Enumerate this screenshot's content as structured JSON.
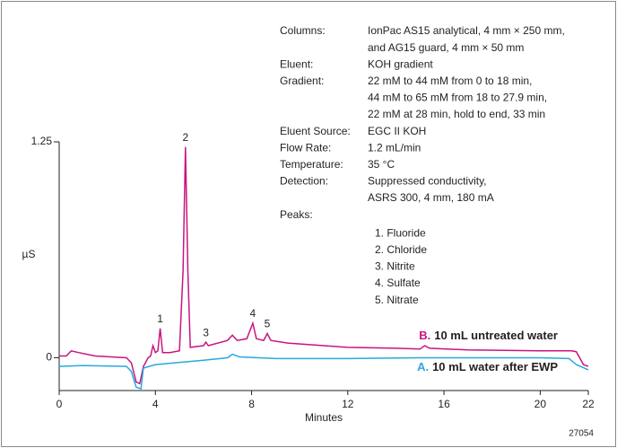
{
  "chart_data": {
    "type": "line",
    "xlabel": "Minutes",
    "ylabel": "µS",
    "xlim": [
      0,
      22
    ],
    "xticks": [
      0,
      4,
      8,
      12,
      16,
      20,
      22
    ],
    "ylim": [
      -0.19,
      1.25
    ],
    "yticks": [
      0,
      1.25
    ],
    "series": [
      {
        "letter": "B.",
        "name": "10 mL untreated water",
        "color": "#c8157f",
        "x": [
          0,
          0.3,
          0.5,
          0.8,
          1.5,
          2.8,
          3.0,
          3.2,
          3.35,
          3.5,
          3.7,
          3.8,
          3.9,
          4.0,
          4.1,
          4.2,
          4.3,
          4.6,
          5.0,
          5.15,
          5.25,
          5.35,
          5.45,
          6.0,
          6.1,
          6.2,
          7.0,
          7.2,
          7.4,
          7.8,
          8.05,
          8.2,
          8.5,
          8.65,
          8.8,
          9.5,
          12,
          14,
          15.0,
          15.2,
          15.4,
          17,
          20,
          21.3,
          21.5,
          21.8,
          22
        ],
        "values": [
          0.01,
          0.01,
          0.04,
          0.03,
          0.01,
          0.0,
          -0.03,
          -0.14,
          -0.15,
          -0.05,
          0.0,
          0.01,
          0.07,
          0.03,
          0.04,
          0.17,
          0.03,
          0.03,
          0.04,
          0.5,
          1.22,
          0.5,
          0.06,
          0.07,
          0.09,
          0.07,
          0.1,
          0.13,
          0.1,
          0.11,
          0.2,
          0.11,
          0.1,
          0.14,
          0.1,
          0.085,
          0.06,
          0.055,
          0.05,
          0.07,
          0.055,
          0.045,
          0.04,
          0.04,
          0.035,
          -0.04,
          -0.05
        ]
      },
      {
        "letter": "A.",
        "name": "10 mL water after EWP",
        "color": "#29a8e0",
        "x": [
          0,
          1,
          2.8,
          3.0,
          3.2,
          3.4,
          3.5,
          4,
          6,
          7.0,
          7.2,
          7.5,
          9,
          12,
          15,
          20,
          21.2,
          21.5,
          22
        ],
        "values": [
          -0.05,
          -0.045,
          -0.05,
          -0.08,
          -0.17,
          -0.18,
          -0.06,
          -0.04,
          -0.015,
          0.0,
          0.02,
          0.005,
          -0.005,
          -0.005,
          0.0,
          0.0,
          -0.005,
          -0.04,
          -0.07
        ]
      }
    ],
    "annotations": [
      {
        "text": "1",
        "x": 4.2,
        "y": 0.17
      },
      {
        "text": "2",
        "x": 5.25,
        "y": 1.22
      },
      {
        "text": "3",
        "x": 6.1,
        "y": 0.09
      },
      {
        "text": "4",
        "x": 8.05,
        "y": 0.2
      },
      {
        "text": "5",
        "x": 8.65,
        "y": 0.14
      }
    ],
    "conditions": [
      {
        "label": "Columns:",
        "lines": [
          "IonPac AS15 analytical, 4 mm × 250 mm,",
          "and AG15 guard, 4 mm × 50 mm"
        ]
      },
      {
        "label": "Eluent:",
        "lines": [
          "KOH gradient"
        ]
      },
      {
        "label": "Gradient:",
        "lines": [
          "22 mM to 44 mM from 0 to 18 min,",
          "44 mM to 65 mM from 18 to 27.9 min,",
          "22 mM at 28 min, hold to end, 33 min"
        ]
      },
      {
        "label": "Eluent Source:",
        "lines": [
          "EGC II KOH"
        ]
      },
      {
        "label": "Flow Rate:",
        "lines": [
          "1.2 mL/min"
        ]
      },
      {
        "label": "Temperature:",
        "lines": [
          "35 °C"
        ]
      },
      {
        "label": "Detection:",
        "lines": [
          "Suppressed conductivity,",
          "ASRS 300, 4 mm, 180 mA"
        ]
      },
      {
        "label": "Peaks:",
        "lines": []
      }
    ],
    "peaks": [
      "1. Fluoride",
      "2. Chloride",
      "3. Nitrite",
      "4. Sulfate",
      "5. Nitrate"
    ],
    "figure_id": "27054"
  }
}
